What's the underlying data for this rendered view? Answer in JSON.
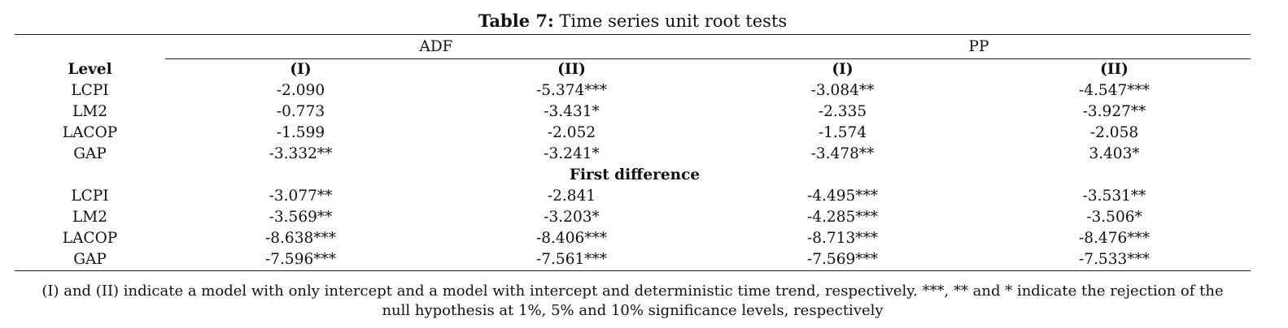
{
  "title": {
    "label": "Table 7:",
    "text": " Time series unit root tests"
  },
  "groups": [
    "ADF",
    "PP"
  ],
  "subheaders": {
    "row_label": "Level",
    "cols": [
      "(I)",
      "(II)",
      "(I)",
      "(II)"
    ]
  },
  "level_rows": [
    {
      "label": "LCPI",
      "values": [
        "-2.090",
        "-5.374***",
        "-3.084**",
        "-4.547***"
      ]
    },
    {
      "label": "LM2",
      "values": [
        "-0.773",
        "-3.431*",
        "-2.335",
        "-3.927**"
      ]
    },
    {
      "label": "LACOP",
      "values": [
        "-1.599",
        "-2.052",
        "-1.574",
        "-2.058"
      ]
    },
    {
      "label": "GAP",
      "values": [
        "-3.332**",
        "-3.241*",
        "-3.478**",
        "3.403*"
      ]
    }
  ],
  "first_difference_label": "First difference",
  "first_diff_rows": [
    {
      "label": "LCPI",
      "values": [
        "-3.077**",
        "-2.841",
        "-4.495***",
        "-3.531**"
      ]
    },
    {
      "label": "LM2",
      "values": [
        "-3.569**",
        "-3.203*",
        "-4.285***",
        "-3.506*"
      ]
    },
    {
      "label": "LACOP",
      "values": [
        "-8.638***",
        "-8.406***",
        "-8.713***",
        "-8.476***"
      ]
    },
    {
      "label": "GAP",
      "values": [
        "-7.596***",
        "-7.561***",
        "-7.569***",
        "-7.533***"
      ]
    }
  ],
  "note": {
    "line1": "(I) and (II) indicate a model with only intercept and a model with intercept and deterministic time trend, respectively. ***, ** and * indicate the rejection of the",
    "line2": "null hypothesis at 1%, 5% and 10% significance levels, respectively"
  }
}
